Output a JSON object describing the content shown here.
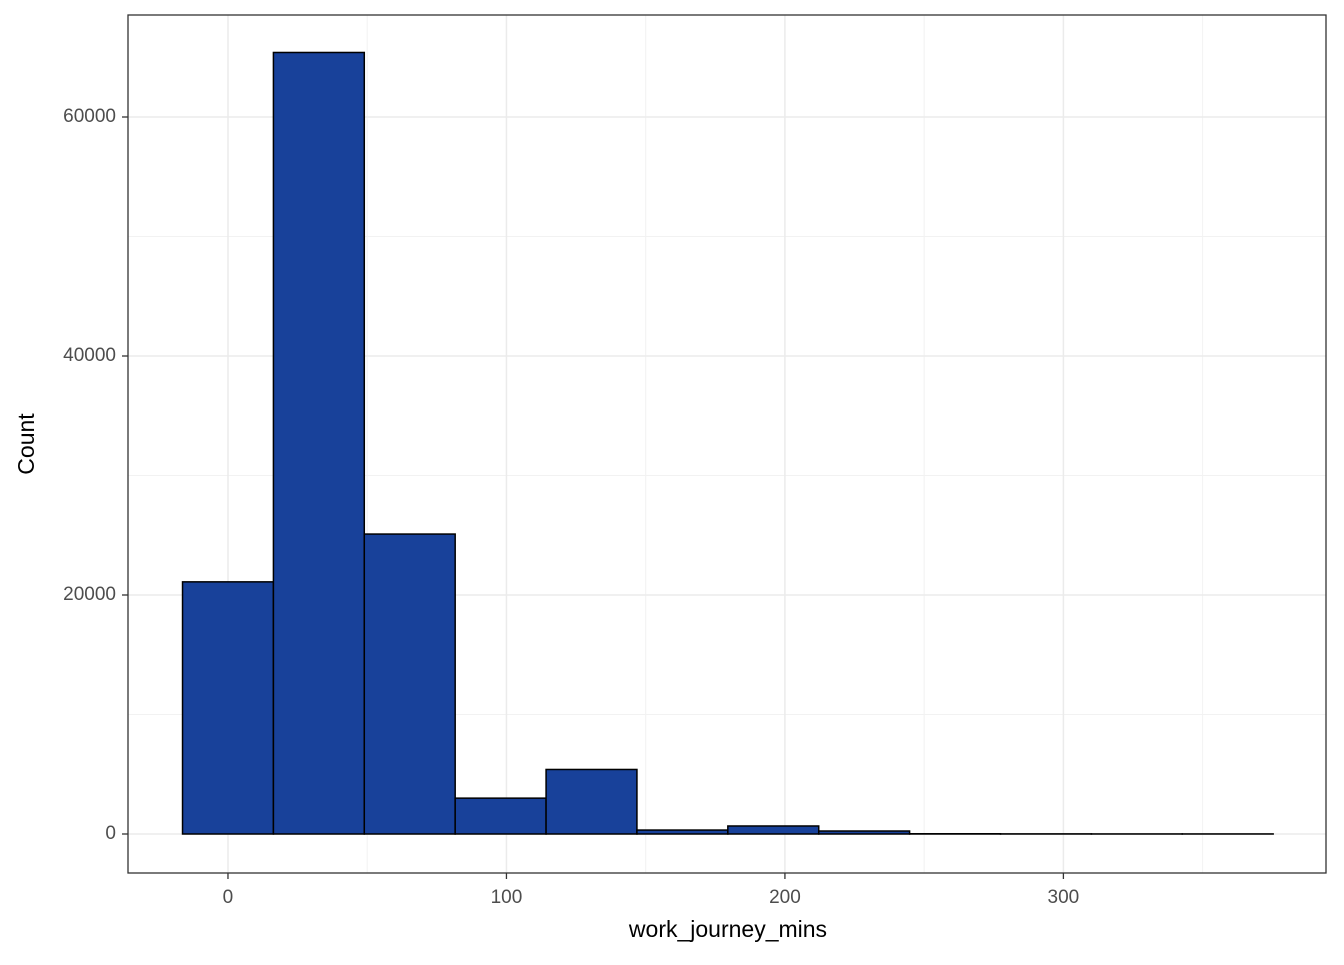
{
  "chart_data": {
    "type": "histogram",
    "xlabel": "work_journey_mins",
    "ylabel": "Count",
    "bins": [
      -16.32,
      16.32,
      48.95,
      81.59,
      114.23,
      146.86,
      179.5,
      212.14,
      244.77,
      277.41,
      310.05,
      342.68,
      375.32
    ],
    "counts": [
      21100,
      65400,
      25100,
      3000,
      5400,
      330,
      670,
      250,
      20,
      10,
      5,
      5
    ],
    "color": "#18419a",
    "edgecolor": "#000000",
    "xlim": [
      -35.9,
      394.3
    ],
    "ylim": [
      -3264,
      68536
    ],
    "xticks": [
      0,
      100,
      200,
      300
    ],
    "yticks": [
      0,
      20000,
      40000,
      60000
    ],
    "grid": true
  }
}
